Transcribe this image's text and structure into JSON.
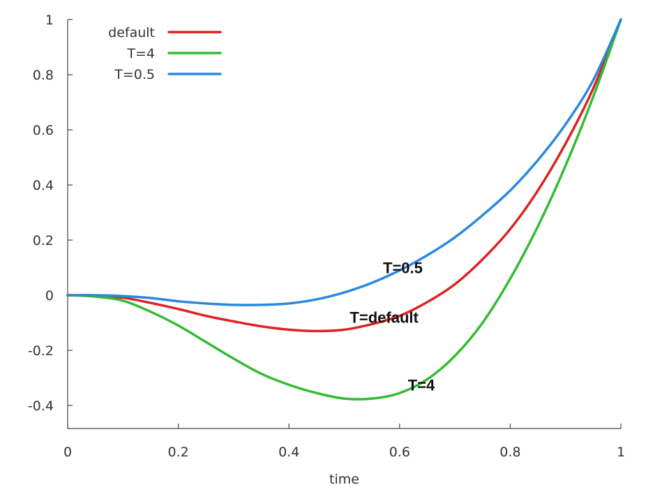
{
  "chart_data": {
    "type": "line",
    "title": "",
    "xlabel": "time",
    "ylabel": "",
    "xlim": [
      0,
      1
    ],
    "ylim": [
      -0.5,
      1
    ],
    "xticks": [
      {
        "value": 0,
        "label": "0"
      },
      {
        "value": 0.2,
        "label": "0.2"
      },
      {
        "value": 0.4,
        "label": "0.4"
      },
      {
        "value": 0.6,
        "label": "0.6"
      },
      {
        "value": 0.8,
        "label": "0.8"
      },
      {
        "value": 1,
        "label": "1"
      }
    ],
    "yticks": [
      {
        "value": 1,
        "label": "1"
      },
      {
        "value": 0.8,
        "label": "0.8"
      },
      {
        "value": 0.6,
        "label": "0.6"
      },
      {
        "value": 0.4,
        "label": "0.4"
      },
      {
        "value": 0.2,
        "label": "0.2"
      },
      {
        "value": 0,
        "label": "0"
      },
      {
        "value": -0.2,
        "label": "-0.2"
      },
      {
        "value": -0.4,
        "label": "-0.4"
      }
    ],
    "legend_position": "top-left",
    "series": [
      {
        "name": "default",
        "color": "#dd2222",
        "x": [
          0,
          0.05,
          0.1,
          0.15,
          0.2,
          0.25,
          0.3,
          0.35,
          0.4,
          0.45,
          0.5,
          0.55,
          0.6,
          0.65,
          0.7,
          0.75,
          0.8,
          0.85,
          0.9,
          0.95,
          1.0
        ],
        "y": [
          0,
          -0.002,
          -0.009,
          -0.028,
          -0.05,
          -0.075,
          -0.095,
          -0.113,
          -0.125,
          -0.13,
          -0.125,
          -0.105,
          -0.075,
          -0.025,
          0.04,
          0.13,
          0.24,
          0.38,
          0.55,
          0.75,
          1.0
        ]
      },
      {
        "name": "T=4",
        "color": "#33bb33",
        "x": [
          0,
          0.05,
          0.1,
          0.15,
          0.2,
          0.25,
          0.3,
          0.35,
          0.4,
          0.45,
          0.5,
          0.55,
          0.6,
          0.65,
          0.7,
          0.75,
          0.8,
          0.85,
          0.9,
          0.95,
          1.0
        ],
        "y": [
          0,
          -0.005,
          -0.02,
          -0.06,
          -0.11,
          -0.17,
          -0.23,
          -0.285,
          -0.325,
          -0.355,
          -0.375,
          -0.375,
          -0.355,
          -0.305,
          -0.22,
          -0.1,
          0.06,
          0.25,
          0.47,
          0.72,
          1.0
        ]
      },
      {
        "name": "T=0.5",
        "color": "#2a88dd",
        "x": [
          0,
          0.05,
          0.1,
          0.15,
          0.2,
          0.25,
          0.3,
          0.35,
          0.4,
          0.45,
          0.5,
          0.55,
          0.6,
          0.65,
          0.7,
          0.75,
          0.8,
          0.85,
          0.9,
          0.95,
          1.0
        ],
        "y": [
          0,
          0,
          -0.003,
          -0.01,
          -0.022,
          -0.03,
          -0.035,
          -0.035,
          -0.03,
          -0.015,
          0.01,
          0.045,
          0.09,
          0.145,
          0.21,
          0.29,
          0.38,
          0.49,
          0.62,
          0.78,
          1.0
        ]
      }
    ],
    "legend": [
      {
        "label": "default",
        "color": "#dd2222"
      },
      {
        "label": "T=4",
        "color": "#33bb33"
      },
      {
        "label": "T=0.5",
        "color": "#2a88dd"
      }
    ],
    "annotations": [
      {
        "text": "T=0.5",
        "x": 0.57,
        "y": 0.08
      },
      {
        "text": "T=default",
        "x": 0.51,
        "y": -0.1
      },
      {
        "text": "T=4",
        "x": 0.615,
        "y": -0.345
      }
    ]
  }
}
